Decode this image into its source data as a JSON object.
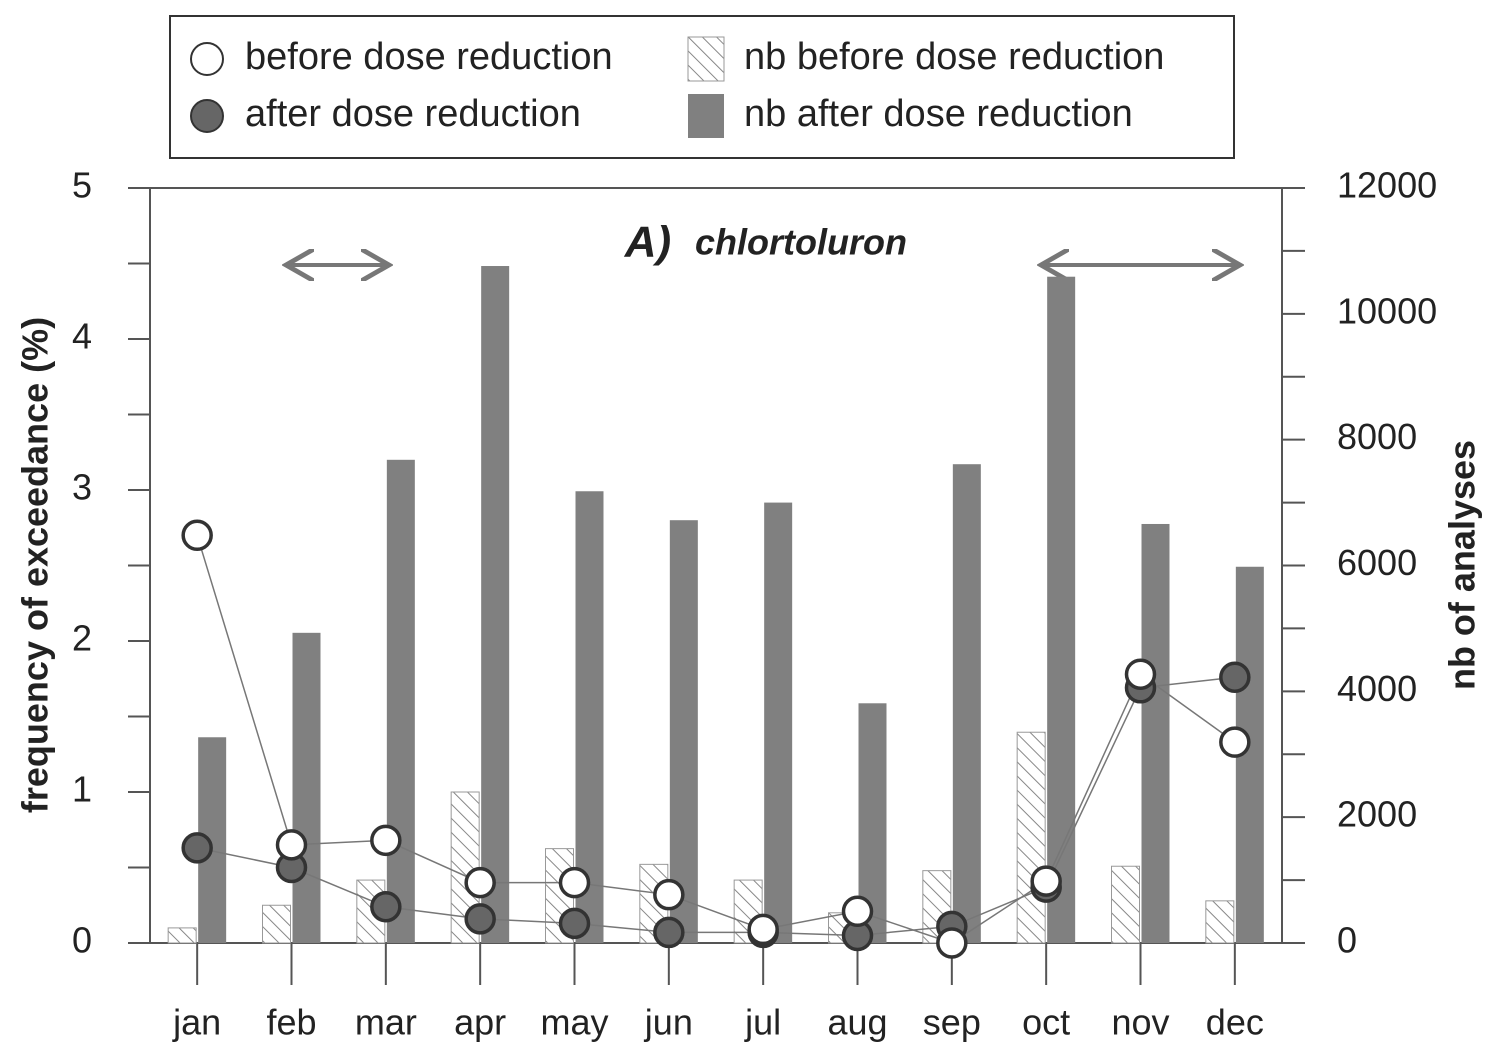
{
  "chart_data": {
    "type": "combo",
    "panel_label": "A)",
    "title": "chlortoluron",
    "y_label": "frequency of exceedance (%)",
    "y2_label": "nb of analyses",
    "categories": [
      "jan",
      "feb",
      "mar",
      "apr",
      "may",
      "jun",
      "jul",
      "aug",
      "sep",
      "oct",
      "nov",
      "dec"
    ],
    "series": [
      {
        "name": "before dose reduction",
        "type": "line",
        "color": "#ffffff",
        "values": [
          2.7,
          0.65,
          0.68,
          0.4,
          0.4,
          0.32,
          0.09,
          0.21,
          0.0,
          0.41,
          1.78,
          1.33
        ]
      },
      {
        "name": "after dose reduction",
        "type": "line",
        "color": "#666666",
        "values": [
          0.63,
          0.5,
          0.24,
          0.16,
          0.13,
          0.07,
          0.07,
          0.05,
          0.11,
          0.37,
          1.69,
          1.76
        ]
      },
      {
        "name": "nb before dose reduction",
        "type": "bar",
        "axis": "y2",
        "hatch": true,
        "color": "#ffffff",
        "values": [
          240,
          600,
          1000,
          2400,
          1500,
          1250,
          1000,
          480,
          1150,
          3350,
          1220,
          670
        ]
      },
      {
        "name": "nb after dose reduction",
        "type": "bar",
        "axis": "y2",
        "hatch": false,
        "color": "#808080",
        "values": [
          3270,
          4930,
          7680,
          10760,
          7180,
          6720,
          7000,
          3810,
          7610,
          10590,
          6660,
          5980
        ]
      }
    ],
    "ylim": [
      0,
      5
    ],
    "yticks": [
      0,
      1,
      2,
      3,
      4,
      5
    ],
    "yminorticks": [
      0.5,
      1.5,
      2.5,
      3.5,
      4.5
    ],
    "y2lim": [
      0,
      12000
    ],
    "y2ticks": [
      0,
      2000,
      4000,
      6000,
      8000,
      10000,
      12000
    ],
    "y2minorticks": [
      1000,
      3000,
      5000,
      7000,
      9000,
      11000
    ]
  }
}
